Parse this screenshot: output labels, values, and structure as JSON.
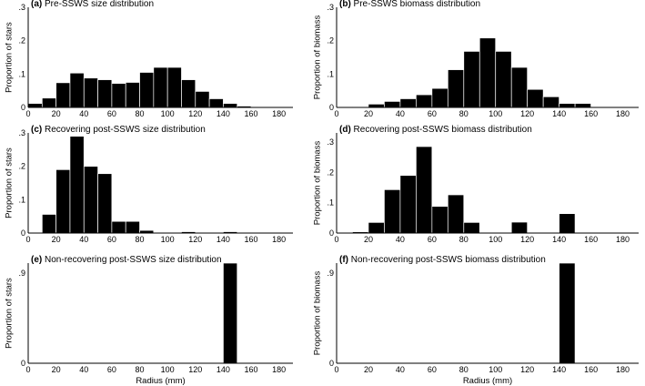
{
  "figure": {
    "shared_xlabel": "Radius (mm)"
  },
  "chart_data": [
    {
      "id": "a",
      "letter": "(a)",
      "type": "bar",
      "title": "Pre-SSWS size distribution",
      "xlabel": "",
      "ylabel": "Proportion of stars",
      "xlim": [
        0,
        190
      ],
      "ylim": [
        0,
        0.3
      ],
      "xticks": [
        0,
        20,
        40,
        60,
        80,
        100,
        120,
        140,
        160,
        180
      ],
      "yticks": [
        0,
        0.1,
        0.2,
        0.3
      ],
      "bin_width": 10,
      "bin_centers": [
        5,
        15,
        25,
        35,
        45,
        55,
        65,
        75,
        85,
        95,
        105,
        115,
        125,
        135,
        145,
        155,
        165
      ],
      "values": [
        0.012,
        0.028,
        0.074,
        0.103,
        0.088,
        0.083,
        0.072,
        0.075,
        0.105,
        0.12,
        0.12,
        0.083,
        0.048,
        0.026,
        0.012,
        0.004,
        0.002
      ]
    },
    {
      "id": "b",
      "letter": "(b)",
      "type": "bar",
      "title": "Pre-SSWS biomass distribution",
      "xlabel": "",
      "ylabel": "Proportion of biomass",
      "xlim": [
        0,
        190
      ],
      "ylim": [
        0,
        0.3
      ],
      "xticks": [
        0,
        20,
        40,
        60,
        80,
        100,
        120,
        140,
        160,
        180
      ],
      "yticks": [
        0,
        0.1,
        0.2,
        0.3
      ],
      "bin_width": 10,
      "bin_centers": [
        5,
        15,
        25,
        35,
        45,
        55,
        65,
        75,
        85,
        95,
        105,
        115,
        125,
        135,
        145,
        155,
        165
      ],
      "values": [
        0.0,
        0.002,
        0.01,
        0.018,
        0.026,
        0.038,
        0.057,
        0.113,
        0.168,
        0.208,
        0.168,
        0.12,
        0.054,
        0.032,
        0.012,
        0.012,
        0.0
      ]
    },
    {
      "id": "c",
      "letter": "(c)",
      "type": "bar",
      "title": "Recovering post-SSWS size distribution",
      "xlabel": "",
      "ylabel": "Proportion of stars",
      "xlim": [
        0,
        190
      ],
      "ylim": [
        0,
        0.3
      ],
      "xticks": [
        0,
        20,
        40,
        60,
        80,
        100,
        120,
        140,
        160,
        180
      ],
      "yticks": [
        0,
        0.1,
        0.2,
        0.3
      ],
      "bin_width": 10,
      "bin_centers": [
        5,
        15,
        25,
        35,
        45,
        55,
        65,
        75,
        85,
        95,
        105,
        115,
        125,
        135,
        145,
        155,
        165
      ],
      "values": [
        0.0,
        0.056,
        0.19,
        0.29,
        0.2,
        0.178,
        0.035,
        0.035,
        0.008,
        0.0,
        0.0,
        0.004,
        0.0,
        0.0,
        0.004,
        0.0,
        0.0
      ]
    },
    {
      "id": "d",
      "letter": "(d)",
      "type": "bar",
      "title": "Recovering post-SSWS biomass distribution",
      "xlabel": "",
      "ylabel": "Proportion of biomass",
      "xlim": [
        0,
        190
      ],
      "ylim": [
        0,
        0.33
      ],
      "xticks": [
        0,
        20,
        40,
        60,
        80,
        100,
        120,
        140,
        160,
        180
      ],
      "yticks": [
        0,
        0.1,
        0.2,
        0.3
      ],
      "bin_width": 10,
      "bin_centers": [
        5,
        15,
        25,
        35,
        45,
        55,
        65,
        75,
        85,
        95,
        105,
        115,
        125,
        135,
        145,
        155,
        165
      ],
      "values": [
        0.0,
        0.004,
        0.035,
        0.143,
        0.19,
        0.285,
        0.088,
        0.126,
        0.035,
        0.0,
        0.0,
        0.036,
        0.0,
        0.0,
        0.064,
        0.0,
        0.0
      ]
    },
    {
      "id": "e",
      "letter": "(e)",
      "type": "bar",
      "title": "Non-recovering post-SSWS size distribution",
      "xlabel": "Radius (mm)",
      "ylabel": "Proportion of stars",
      "xlim": [
        0,
        190
      ],
      "ylim": [
        0,
        1.0
      ],
      "xticks": [
        0,
        20,
        40,
        60,
        80,
        100,
        120,
        140,
        160,
        180
      ],
      "yticks": [
        0,
        0.9
      ],
      "bin_width": 10,
      "bin_centers": [
        145
      ],
      "values": [
        1.0
      ]
    },
    {
      "id": "f",
      "letter": "(f)",
      "type": "bar",
      "title": "Non-recovering post-SSWS biomass distribution",
      "xlabel": "Radius (mm)",
      "ylabel": "Proportion of biomass",
      "xlim": [
        0,
        190
      ],
      "ylim": [
        0,
        1.0
      ],
      "xticks": [
        0,
        20,
        40,
        60,
        80,
        100,
        120,
        140,
        160,
        180
      ],
      "yticks": [
        0,
        0.9
      ],
      "bin_width": 10,
      "bin_centers": [
        145
      ],
      "values": [
        1.0
      ]
    }
  ]
}
